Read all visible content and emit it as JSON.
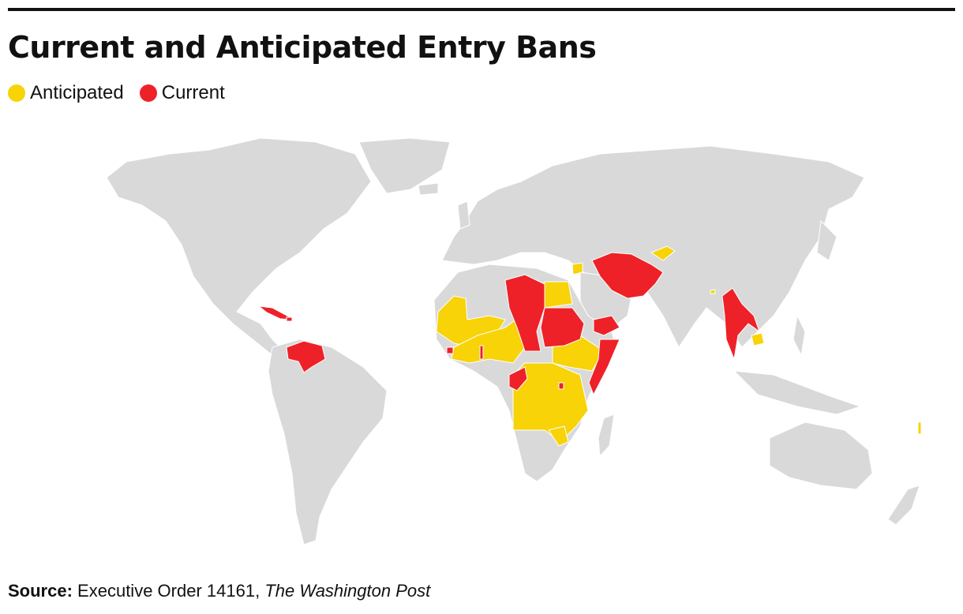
{
  "header": {
    "title": "Current and Anticipated Entry Bans"
  },
  "legend": {
    "anticipated_label": "Anticipated",
    "current_label": "Current"
  },
  "colors": {
    "anticipated": "#f7d308",
    "current": "#ee2128",
    "land": "#d9d9d9",
    "rule": "#111111"
  },
  "source": {
    "label": "Source:",
    "text": "Executive Order 14161,",
    "publication": "The Washington Post"
  }
}
